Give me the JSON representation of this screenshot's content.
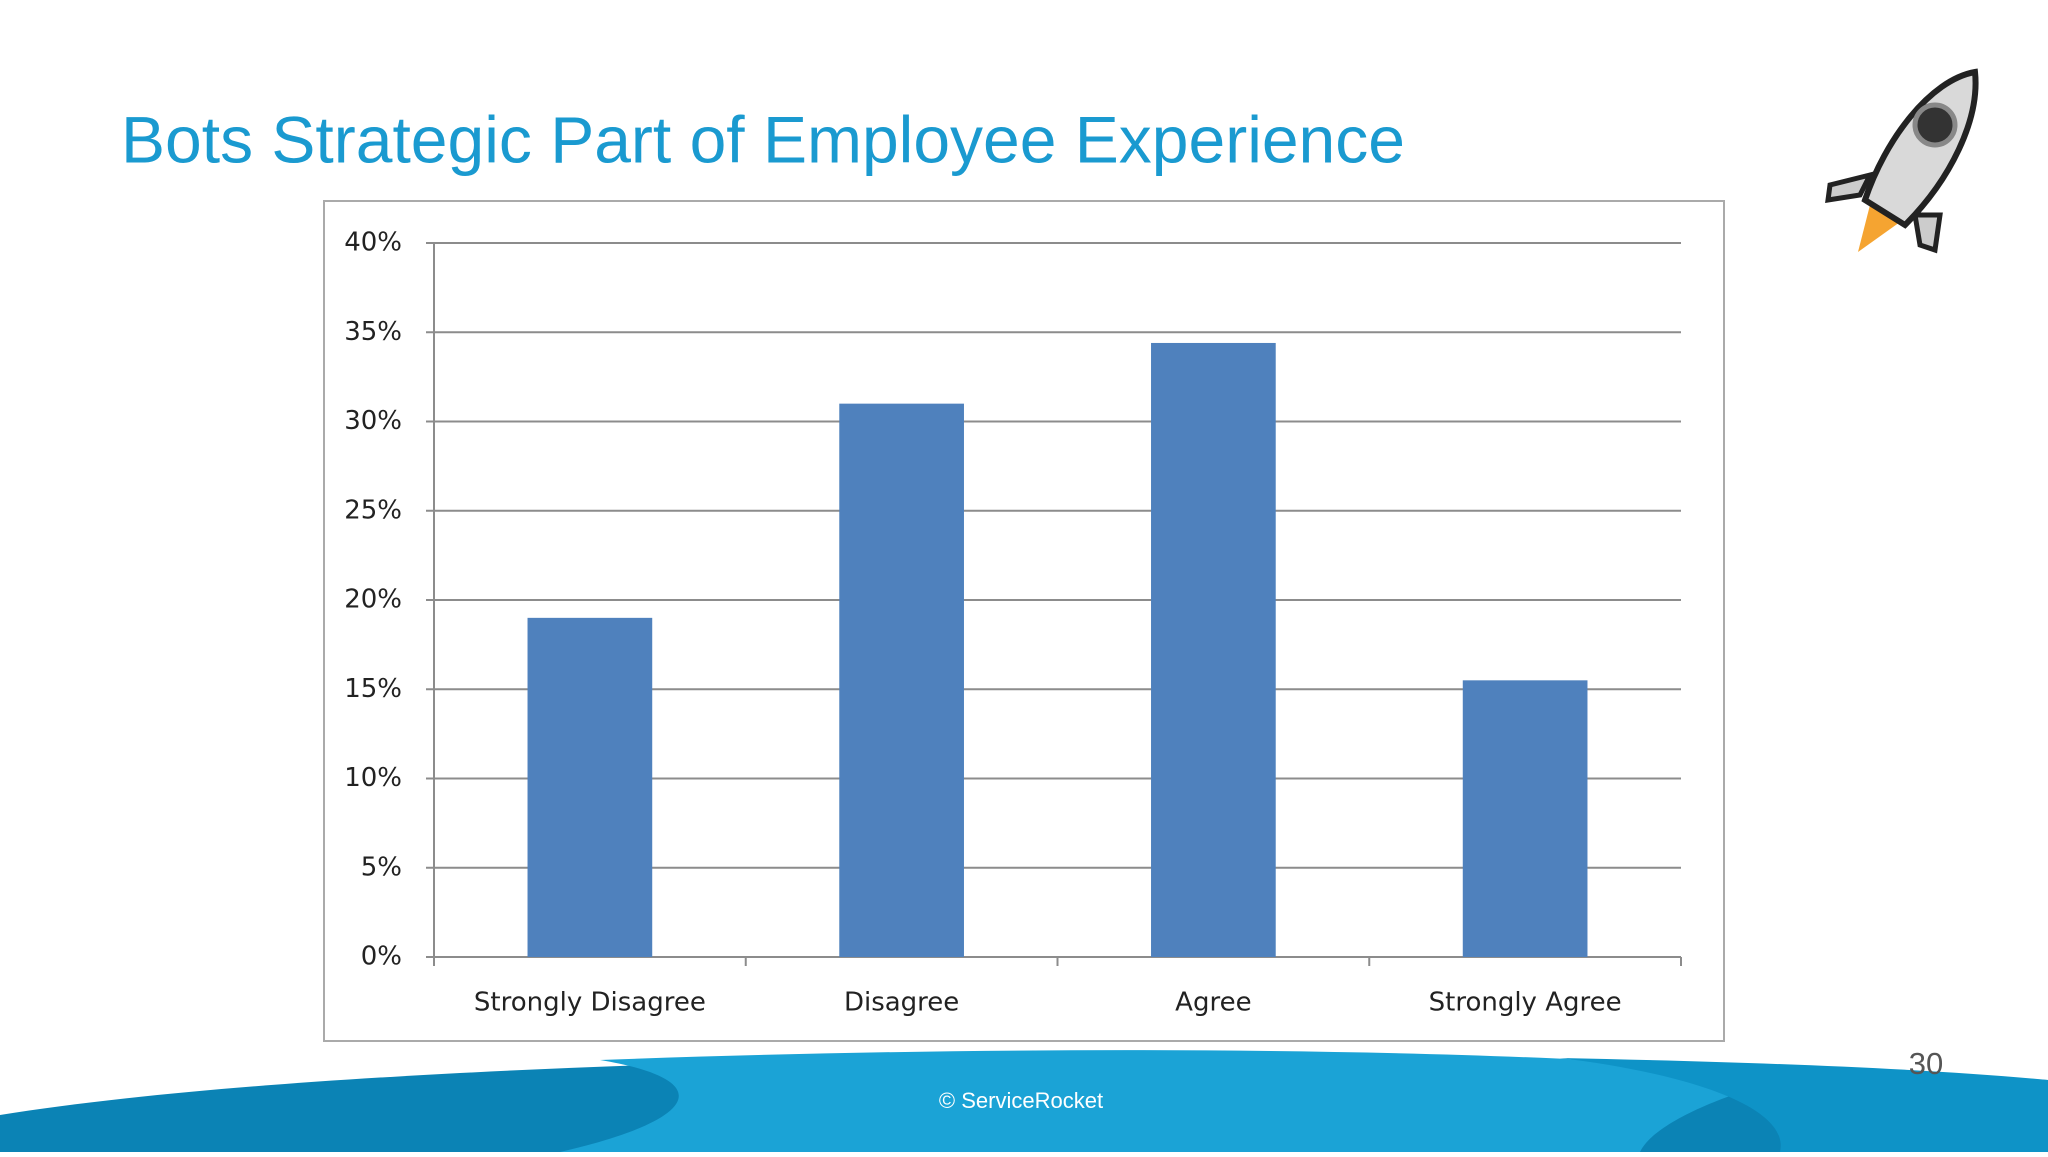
{
  "chart_data": {
    "type": "bar",
    "title": "Bots Strategic Part of Employee Experience",
    "categories": [
      "Strongly Disagree",
      "Disagree",
      "Agree",
      "Strongly Agree"
    ],
    "values": [
      19,
      31,
      34.4,
      15.5
    ],
    "color": "#4f81bd",
    "ylim": [
      0,
      40
    ],
    "yticks": [
      {
        "value": 0,
        "label": "0%"
      },
      {
        "value": 5,
        "label": "5%"
      },
      {
        "value": 10,
        "label": "10%"
      },
      {
        "value": 15,
        "label": "15%"
      },
      {
        "value": 20,
        "label": "20%"
      },
      {
        "value": 25,
        "label": "25%"
      },
      {
        "value": 30,
        "label": "30%"
      },
      {
        "value": 35,
        "label": "35%"
      },
      {
        "value": 40,
        "label": "40%"
      }
    ],
    "grid": true
  },
  "slide": {
    "page_number": "30",
    "footer": "© ServiceRocket"
  }
}
